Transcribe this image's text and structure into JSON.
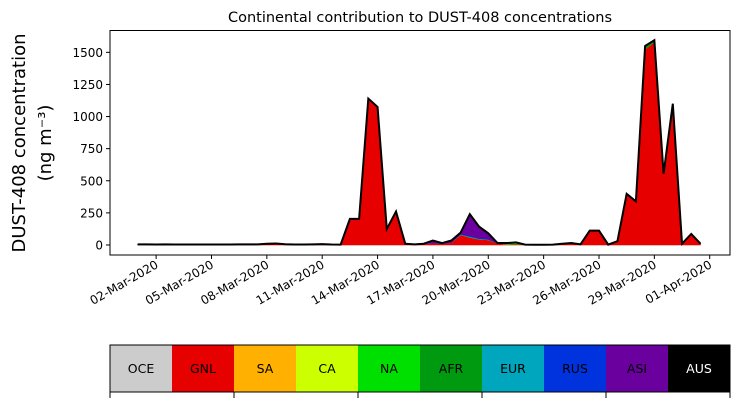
{
  "chart_data": {
    "type": "area",
    "stacked": true,
    "title": "Continental contribution to DUST-408 concentrations",
    "ylabel_line1": "DUST-408 concentration",
    "ylabel_line2": "(ng m⁻³)",
    "xlabel": "",
    "x_start": "2020-03-01",
    "x_step_days": 0.5,
    "xlim_days": [
      -1.5,
      32.1
    ],
    "ylim": [
      -78,
      1670
    ],
    "yticks": [
      0,
      250,
      500,
      750,
      1000,
      1250,
      1500
    ],
    "xticks": [
      {
        "day": 1,
        "label": "02-Mar-2020"
      },
      {
        "day": 4,
        "label": "05-Mar-2020"
      },
      {
        "day": 7,
        "label": "08-Mar-2020"
      },
      {
        "day": 10,
        "label": "11-Mar-2020"
      },
      {
        "day": 13,
        "label": "14-Mar-2020"
      },
      {
        "day": 16,
        "label": "17-Mar-2020"
      },
      {
        "day": 19,
        "label": "20-Mar-2020"
      },
      {
        "day": 22,
        "label": "23-Mar-2020"
      },
      {
        "day": 25,
        "label": "26-Mar-2020"
      },
      {
        "day": 28,
        "label": "29-Mar-2020"
      },
      {
        "day": 31,
        "label": "01-Apr-2020"
      }
    ],
    "series": [
      {
        "name": "OCE",
        "color": "#cccccc",
        "values": [
          0,
          0,
          0,
          0,
          0,
          0,
          0,
          0,
          0,
          0,
          0,
          0,
          0,
          0,
          0,
          0,
          0,
          0,
          0,
          0,
          0,
          0,
          0,
          0,
          0,
          0,
          0,
          0,
          0,
          0,
          0,
          0,
          0,
          0,
          0,
          0,
          0,
          0,
          0,
          0,
          0,
          0,
          0,
          0,
          0,
          0,
          0,
          0,
          0,
          0,
          0,
          0,
          0,
          0,
          0,
          0,
          0,
          0,
          0,
          0,
          0,
          0
        ]
      },
      {
        "name": "GNL",
        "color": "#e60000",
        "values": [
          2,
          2,
          1,
          2,
          1,
          1,
          1,
          1,
          1,
          1,
          1,
          2,
          2,
          2,
          7,
          9,
          3,
          1,
          1,
          2,
          4,
          1,
          3,
          203,
          203,
          1140,
          1075,
          125,
          260,
          10,
          5,
          10,
          15,
          10,
          20,
          80,
          60,
          45,
          40,
          15,
          5,
          7,
          3,
          2,
          2,
          3,
          10,
          15,
          5,
          112,
          112,
          3,
          30,
          398,
          340,
          1525,
          1579,
          555,
          1100,
          10,
          86,
          10
        ]
      },
      {
        "name": "SA",
        "color": "#ffb000",
        "values": [
          0,
          0,
          0,
          0,
          0,
          0,
          0,
          0,
          0,
          0,
          0,
          0,
          0,
          0,
          0,
          0,
          0,
          0,
          0,
          0,
          0,
          0,
          0,
          0,
          0,
          0,
          0,
          0,
          0,
          0,
          0,
          0,
          0,
          0,
          0,
          0,
          0,
          0,
          0,
          0,
          0,
          0,
          0,
          0,
          0,
          0,
          0,
          0,
          0,
          0,
          0,
          0,
          0,
          0,
          0,
          0,
          0,
          0,
          0,
          0,
          0,
          0
        ]
      },
      {
        "name": "CA",
        "color": "#ccff00",
        "values": [
          0,
          0,
          0,
          0,
          0,
          0,
          0,
          0,
          0,
          0,
          0,
          0,
          0,
          0,
          0,
          0,
          0,
          0,
          0,
          0,
          0,
          0,
          0,
          0,
          0,
          0,
          0,
          0,
          0,
          0,
          0,
          0,
          0,
          0,
          0,
          0,
          0,
          0,
          0,
          0,
          0,
          0,
          0,
          0,
          0,
          0,
          0,
          0,
          0,
          0,
          0,
          0,
          0,
          0,
          0,
          0,
          0,
          0,
          0,
          0,
          0,
          0
        ]
      },
      {
        "name": "NA",
        "color": "#00e000",
        "values": [
          1,
          1,
          1,
          1,
          1,
          1,
          1,
          1,
          1,
          1,
          1,
          1,
          1,
          1,
          1,
          1,
          1,
          1,
          1,
          1,
          1,
          1,
          0,
          0,
          0,
          0,
          0,
          0,
          0,
          0,
          0,
          0,
          0,
          0,
          0,
          0,
          0,
          0,
          0,
          0,
          5,
          8,
          0,
          0,
          0,
          0,
          0,
          0,
          0,
          0,
          0,
          0,
          0,
          0,
          0,
          0,
          0,
          0,
          0,
          0,
          0,
          0
        ]
      },
      {
        "name": "AFR",
        "color": "#009a10",
        "values": [
          0,
          0,
          0,
          0,
          0,
          0,
          0,
          0,
          0,
          0,
          0,
          0,
          0,
          0,
          0,
          0,
          0,
          0,
          0,
          0,
          0,
          0,
          0,
          0,
          0,
          0,
          0,
          0,
          0,
          0,
          0,
          0,
          0,
          0,
          0,
          0,
          0,
          0,
          0,
          0,
          5,
          5,
          0,
          0,
          0,
          0,
          0,
          0,
          0,
          0,
          0,
          0,
          0,
          0,
          0,
          25,
          15,
          0,
          0,
          0,
          0,
          0
        ]
      },
      {
        "name": "EUR",
        "color": "#00a6bd",
        "values": [
          2,
          2,
          2,
          2,
          2,
          2,
          2,
          2,
          2,
          2,
          2,
          2,
          2,
          2,
          2,
          2,
          2,
          2,
          2,
          2,
          2,
          2,
          0,
          0,
          0,
          0,
          0,
          0,
          0,
          0,
          0,
          0,
          0,
          0,
          0,
          3,
          5,
          4,
          3,
          0,
          0,
          0,
          0,
          0,
          0,
          0,
          0,
          0,
          0,
          0,
          0,
          0,
          0,
          0,
          0,
          0,
          0,
          0,
          0,
          0,
          0,
          0
        ]
      },
      {
        "name": "RUS",
        "color": "#0033dd",
        "values": [
          0,
          0,
          0,
          0,
          0,
          0,
          0,
          0,
          0,
          0,
          0,
          0,
          0,
          0,
          0,
          0,
          0,
          0,
          0,
          0,
          0,
          0,
          0,
          0,
          0,
          0,
          0,
          0,
          0,
          0,
          0,
          0,
          0,
          0,
          0,
          3,
          5,
          4,
          3,
          0,
          0,
          0,
          0,
          0,
          0,
          0,
          0,
          0,
          0,
          0,
          0,
          0,
          0,
          0,
          0,
          0,
          0,
          0,
          0,
          0,
          0,
          0
        ]
      },
      {
        "name": "ASI",
        "color": "#6a009e",
        "values": [
          0,
          0,
          0,
          0,
          0,
          0,
          0,
          0,
          0,
          0,
          0,
          0,
          0,
          0,
          0,
          0,
          0,
          0,
          0,
          0,
          0,
          0,
          0,
          0,
          0,
          0,
          0,
          0,
          0,
          0,
          0,
          0,
          20,
          5,
          15,
          10,
          170,
          90,
          45,
          0,
          0,
          0,
          0,
          0,
          0,
          0,
          0,
          0,
          0,
          0,
          0,
          0,
          0,
          0,
          0,
          0,
          0,
          0,
          0,
          0,
          0,
          0
        ]
      },
      {
        "name": "AUS",
        "color": "#000000",
        "values": [
          0,
          0,
          0,
          0,
          0,
          0,
          0,
          0,
          0,
          0,
          0,
          0,
          0,
          0,
          0,
          0,
          0,
          0,
          0,
          0,
          0,
          0,
          0,
          0,
          0,
          0,
          0,
          0,
          0,
          0,
          0,
          0,
          0,
          0,
          0,
          0,
          0,
          0,
          0,
          0,
          0,
          0,
          0,
          0,
          0,
          0,
          0,
          0,
          0,
          0,
          0,
          0,
          0,
          0,
          0,
          0,
          0,
          0,
          0,
          0,
          0,
          0
        ]
      }
    ],
    "legend_placement": "bottom colorbar"
  }
}
